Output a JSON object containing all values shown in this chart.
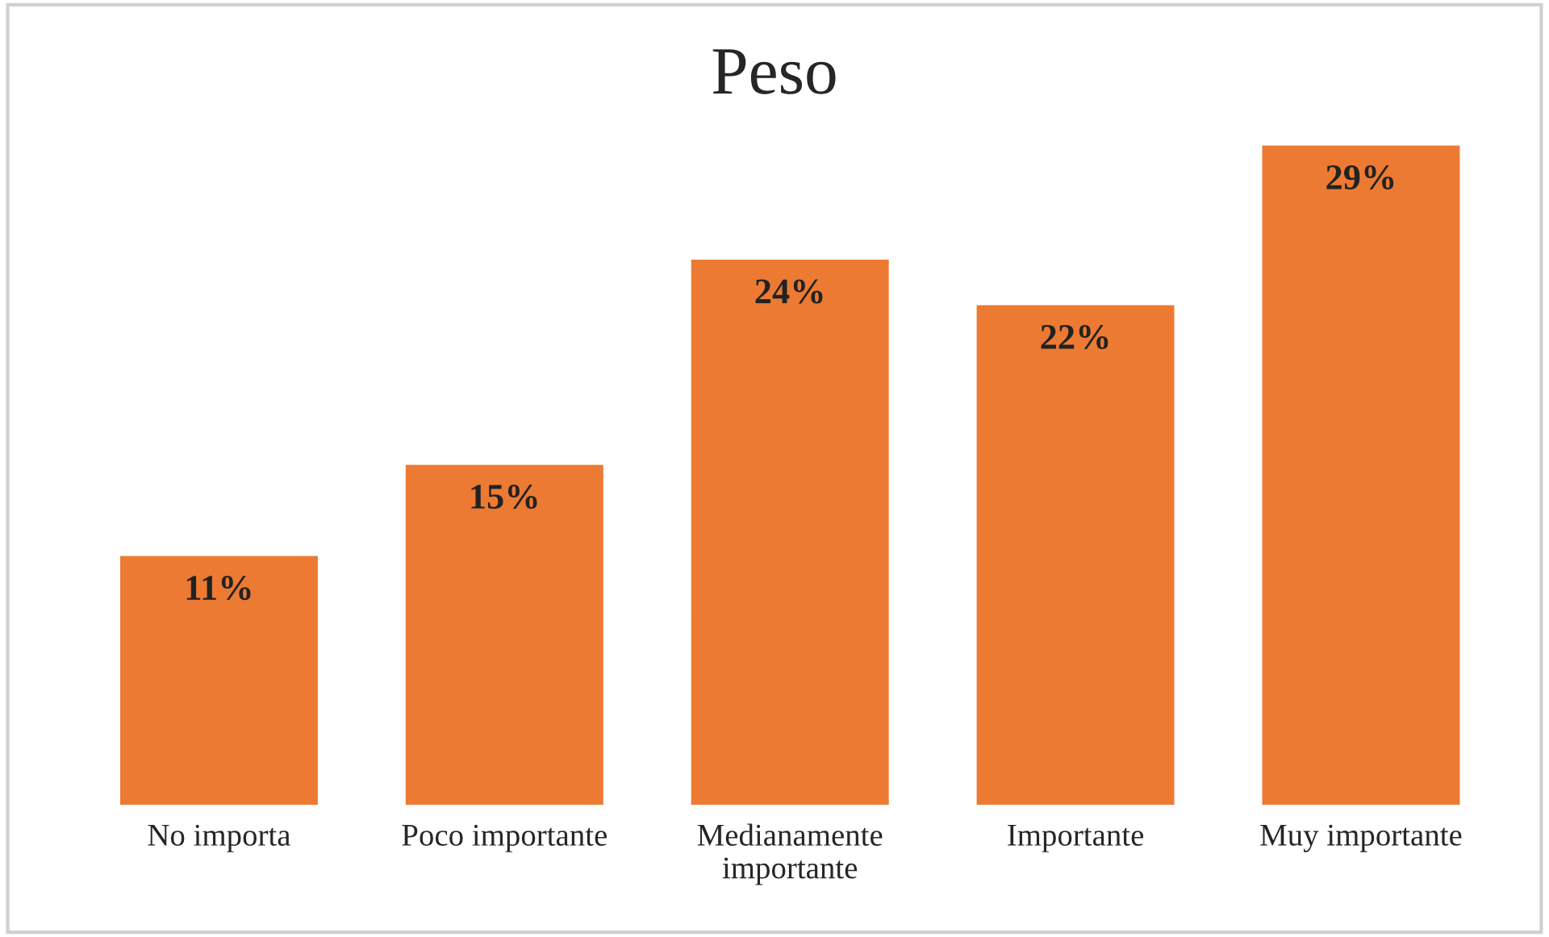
{
  "chart_data": {
    "type": "bar",
    "title": "Peso",
    "categories": [
      "No importa",
      "Poco importante",
      "Medianamente\nimportante",
      "Importante",
      "Muy importante"
    ],
    "values": [
      11,
      15,
      24,
      22,
      29
    ],
    "value_labels": [
      "11%",
      "15%",
      "24%",
      "22%",
      "29%"
    ],
    "color": "#ec7a32",
    "grid": false,
    "legend": false
  }
}
